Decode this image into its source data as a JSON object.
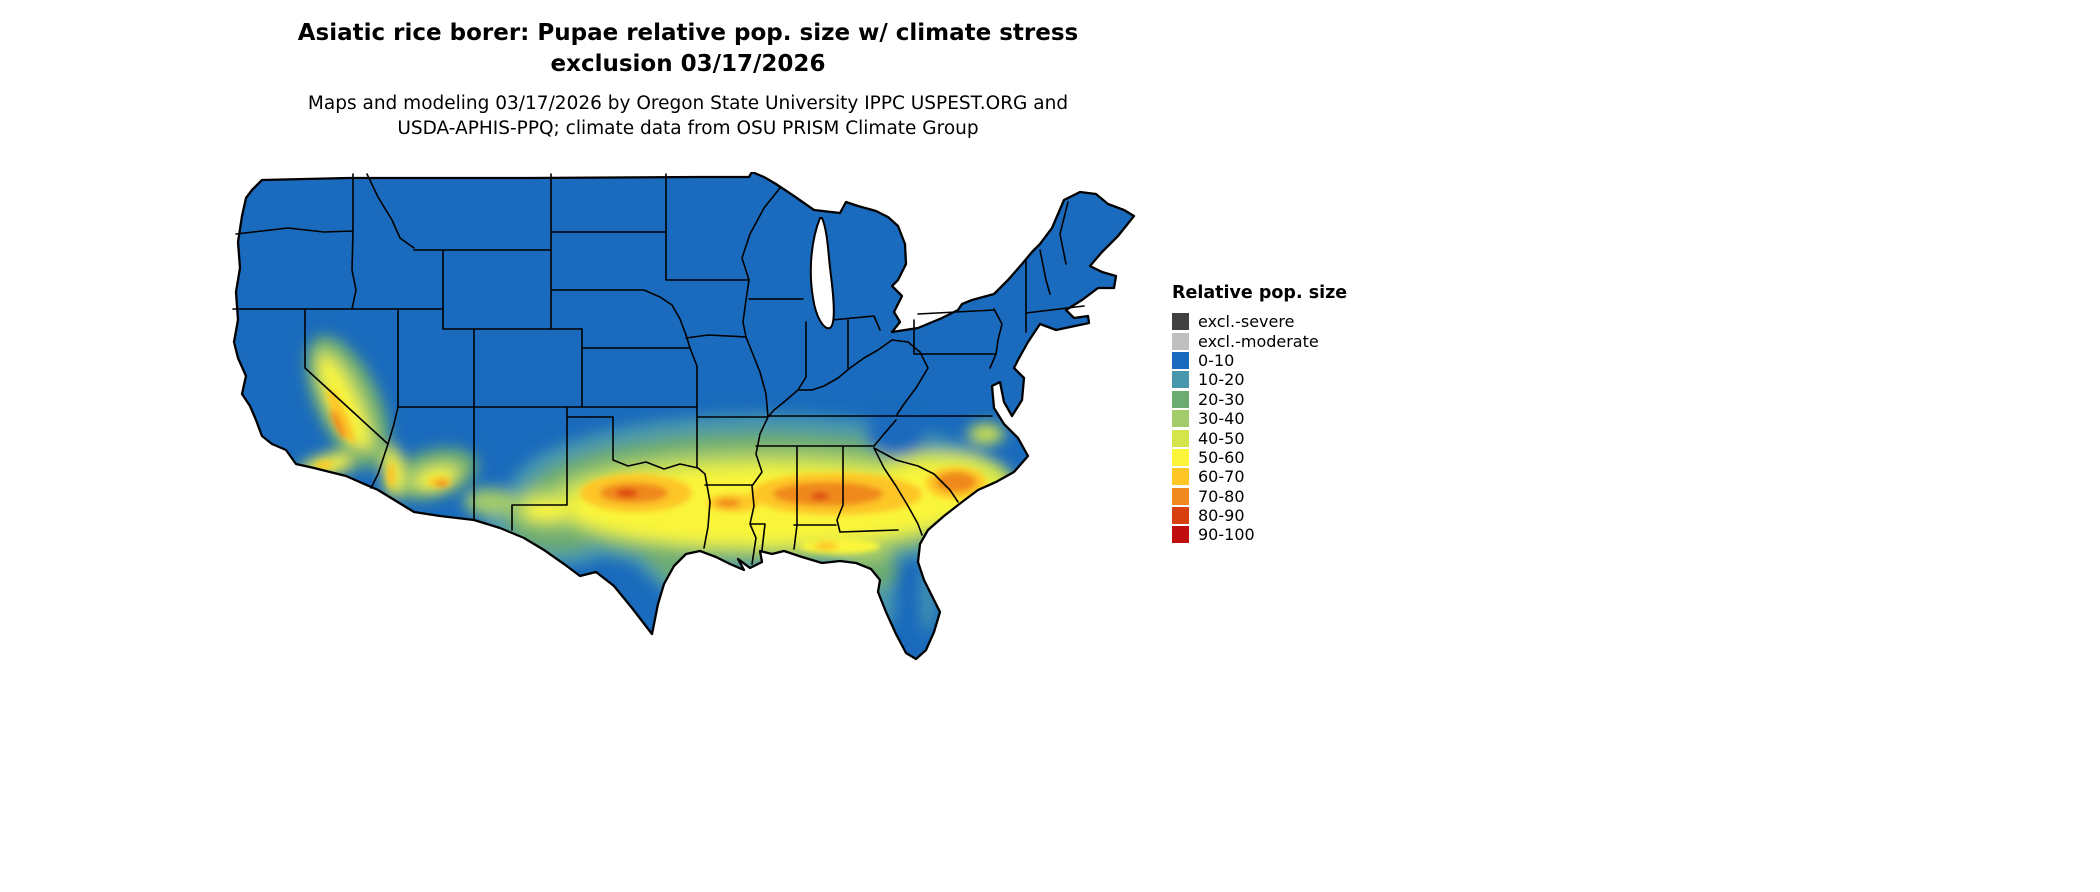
{
  "title": {
    "line1": "Asiatic rice borer: Pupae relative pop. size w/ climate stress",
    "line2": "exclusion 03/17/2026"
  },
  "subtitle": {
    "line1": "Maps and modeling 03/17/2026 by Oregon State University IPPC USPEST.ORG and",
    "line2": "USDA-APHIS-PPQ; climate data from OSU PRISM Climate Group"
  },
  "legend": {
    "title": "Relative pop. size",
    "items": [
      {
        "label": "excl.-severe",
        "color": "#404040"
      },
      {
        "label": "excl.-moderate",
        "color": "#bfbfbf"
      },
      {
        "label": "0-10",
        "color": "#1a6bbd"
      },
      {
        "label": "10-20",
        "color": "#4897ad"
      },
      {
        "label": "20-30",
        "color": "#6cab72"
      },
      {
        "label": "30-40",
        "color": "#a3cb69"
      },
      {
        "label": "40-50",
        "color": "#d4e54b"
      },
      {
        "label": "50-60",
        "color": "#faf53a"
      },
      {
        "label": "60-70",
        "color": "#fdc625"
      },
      {
        "label": "70-80",
        "color": "#f0891f"
      },
      {
        "label": "80-90",
        "color": "#d9400f"
      },
      {
        "label": "90-100",
        "color": "#c00d0d"
      }
    ]
  }
}
